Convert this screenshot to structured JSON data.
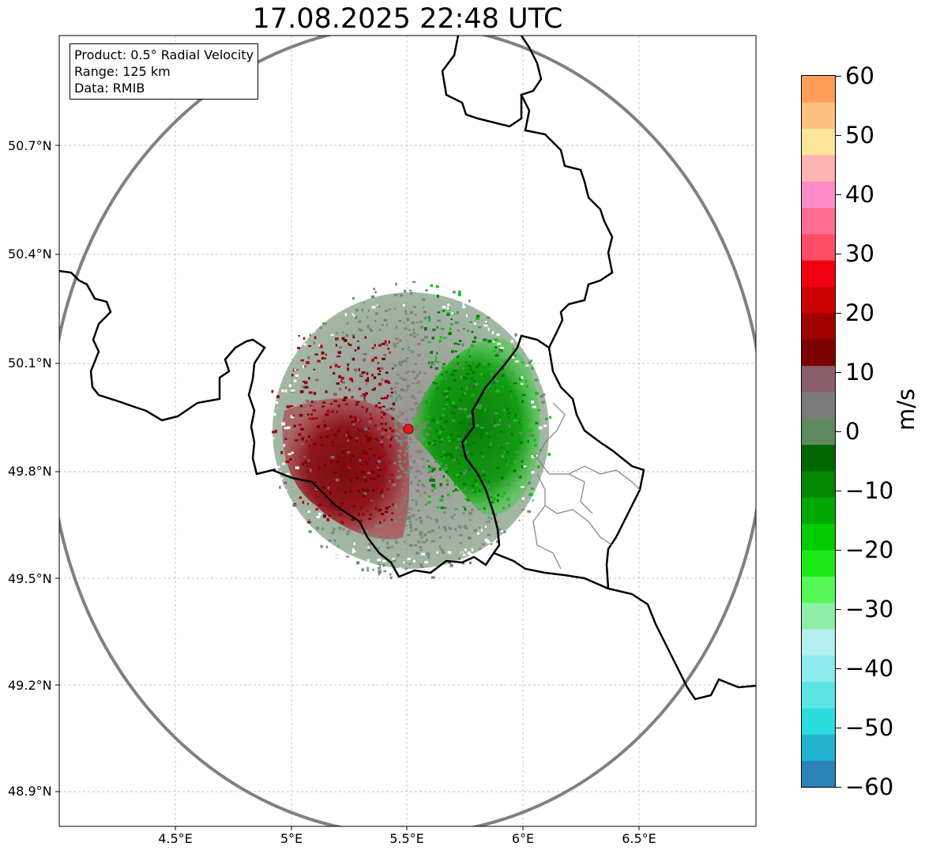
{
  "title": "17.08.2025 22:48 UTC",
  "info": {
    "product": "Product: 0.5° Radial Velocity",
    "range": "Range: 125 km",
    "data": "Data: RMIB"
  },
  "map": {
    "lon_range": [
      4.0,
      7.0
    ],
    "lat_range": [
      48.8,
      51.0
    ],
    "x_ticks": [
      "4.5°E",
      "5°E",
      "5.5°E",
      "6°E",
      "6.5°E"
    ],
    "y_ticks": [
      "50.7°N",
      "50.4°N",
      "50.1°N",
      "49.8°N",
      "49.5°N",
      "49.2°N",
      "48.9°N"
    ],
    "radar_site": {
      "lon": 5.5,
      "lat": 49.91,
      "color": "#e41a1c"
    },
    "range_ring_color": "#808080"
  },
  "colorbar": {
    "label": "m/s",
    "ticks": [
      "60",
      "50",
      "40",
      "30",
      "20",
      "10",
      "0",
      "−10",
      "−20",
      "−30",
      "−40",
      "−50",
      "−60"
    ],
    "vmin": -60,
    "vmax": 60,
    "colors": [
      "#2b83ba",
      "#21b3cf",
      "#2bdcdc",
      "#5ce4e4",
      "#8ceaea",
      "#b5eef0",
      "#8ef0a8",
      "#57f857",
      "#1aea1a",
      "#00cc00",
      "#00a800",
      "#008800",
      "#006600",
      "#5f8a5f",
      "#7a7a7a",
      "#8a5e6a",
      "#7a0000",
      "#a00000",
      "#cc0000",
      "#f00010",
      "#ff4d68",
      "#ff6e90",
      "#ff8cc8",
      "#ffb4b4",
      "#ffe49a",
      "#ffc27e",
      "#ff9e5a"
    ]
  }
}
